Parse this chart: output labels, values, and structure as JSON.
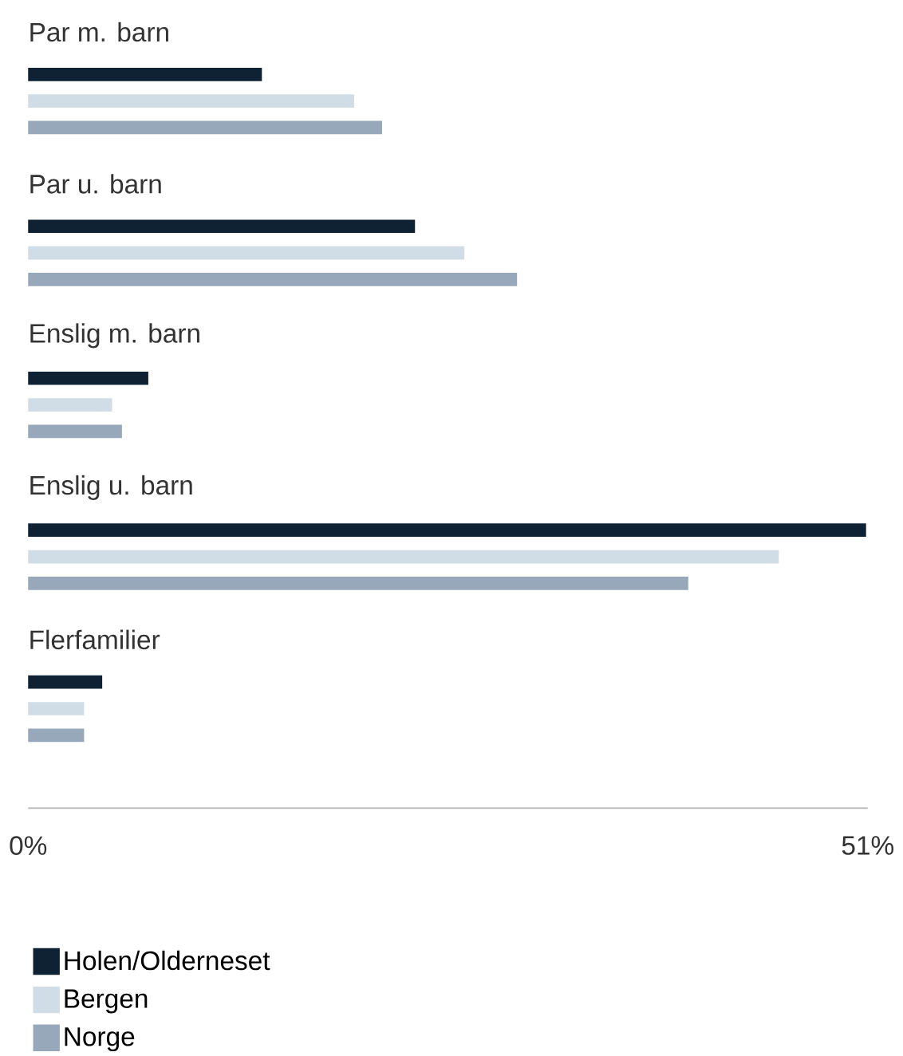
{
  "chart_data": {
    "type": "bar",
    "orientation": "horizontal",
    "categories": [
      "Par m. barn",
      "Par u. barn",
      "Enslig m. barn",
      "Enslig u. barn",
      "Flerfamilier"
    ],
    "series": [
      {
        "name": "Holen/Olderneset",
        "color": "#0f2233",
        "values": [
          14.2,
          23.5,
          7.3,
          50.9,
          4.5
        ]
      },
      {
        "name": "Bergen",
        "color": "#d0dde6",
        "values": [
          19.8,
          26.5,
          5.1,
          45.6,
          3.4
        ]
      },
      {
        "name": "Norge",
        "color": "#97a8ba",
        "values": [
          21.5,
          29.7,
          5.7,
          40.1,
          3.4
        ]
      }
    ],
    "xlim": [
      0,
      51
    ],
    "xticks": [
      {
        "value": 0,
        "label": "0%"
      },
      {
        "value": 51,
        "label": "51%"
      }
    ],
    "legend": "bottom"
  }
}
